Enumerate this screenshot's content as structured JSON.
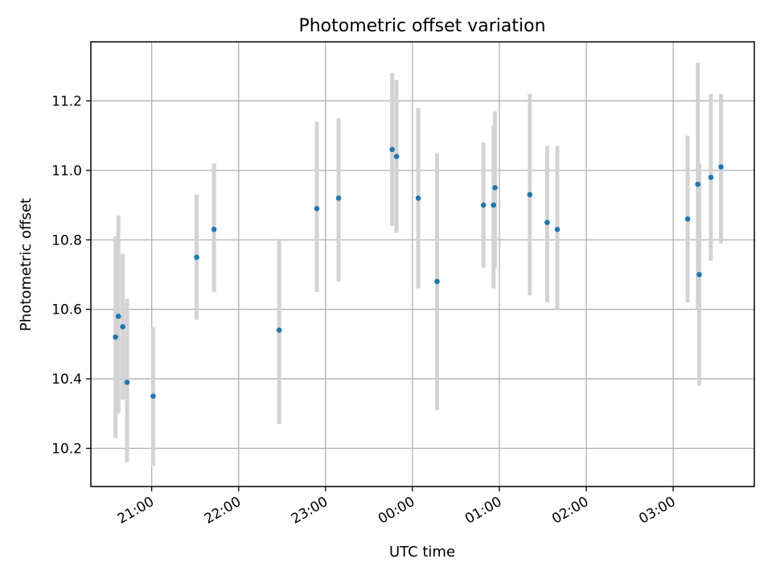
{
  "chart_data": {
    "type": "scatter",
    "title": "Photometric offset variation",
    "xlabel": "UTC time",
    "ylabel": "Photometric offset",
    "xlim": [
      "20:18",
      "03:56 (+1 day)"
    ],
    "ylim": [
      10.09,
      11.37
    ],
    "grid": true,
    "x_tick_labels": [
      "21:00",
      "22:00",
      "23:00",
      "00:00",
      "01:00",
      "02:00",
      "03:00"
    ],
    "y_tick_labels": [
      "10.2",
      "10.4",
      "10.6",
      "10.8",
      "11.0",
      "11.2"
    ],
    "y_ticks": [
      10.2,
      10.4,
      10.6,
      10.8,
      11.0,
      11.2
    ],
    "colors": {
      "marker": "#1f77b4",
      "errorbar": "#d3d3d3"
    },
    "points": [
      {
        "x": "20:35",
        "y": 10.52,
        "ymin": 10.23,
        "ymax": 10.81
      },
      {
        "x": "20:37",
        "y": 10.58,
        "ymin": 10.3,
        "ymax": 10.87
      },
      {
        "x": "20:40",
        "y": 10.55,
        "ymin": 10.34,
        "ymax": 10.76
      },
      {
        "x": "20:43",
        "y": 10.39,
        "ymin": 10.16,
        "ymax": 10.63
      },
      {
        "x": "21:01",
        "y": 10.35,
        "ymin": 10.15,
        "ymax": 10.55
      },
      {
        "x": "21:31",
        "y": 10.75,
        "ymin": 10.57,
        "ymax": 10.93
      },
      {
        "x": "21:43",
        "y": 10.83,
        "ymin": 10.65,
        "ymax": 11.02
      },
      {
        "x": "22:28",
        "y": 10.54,
        "ymin": 10.27,
        "ymax": 10.8
      },
      {
        "x": "22:54",
        "y": 10.89,
        "ymin": 10.65,
        "ymax": 11.14
      },
      {
        "x": "23:09",
        "y": 10.92,
        "ymin": 10.68,
        "ymax": 11.15
      },
      {
        "x": "23:46",
        "y": 11.06,
        "ymin": 10.84,
        "ymax": 11.28
      },
      {
        "x": "23:49",
        "y": 11.04,
        "ymin": 10.82,
        "ymax": 11.26
      },
      {
        "x": "00:04",
        "y": 10.92,
        "ymin": 10.66,
        "ymax": 11.18
      },
      {
        "x": "00:17",
        "y": 10.68,
        "ymin": 10.31,
        "ymax": 11.05
      },
      {
        "x": "00:49",
        "y": 10.9,
        "ymin": 10.72,
        "ymax": 11.08
      },
      {
        "x": "00:56",
        "y": 10.9,
        "ymin": 10.66,
        "ymax": 11.13
      },
      {
        "x": "00:57",
        "y": 10.95,
        "ymin": 10.72,
        "ymax": 11.17
      },
      {
        "x": "01:21",
        "y": 10.93,
        "ymin": 10.64,
        "ymax": 11.22
      },
      {
        "x": "01:33",
        "y": 10.85,
        "ymin": 10.62,
        "ymax": 11.07
      },
      {
        "x": "01:40",
        "y": 10.83,
        "ymin": 10.6,
        "ymax": 11.07
      },
      {
        "x": "03:10",
        "y": 10.86,
        "ymin": 10.62,
        "ymax": 11.1
      },
      {
        "x": "03:17",
        "y": 10.96,
        "ymin": 10.6,
        "ymax": 11.31
      },
      {
        "x": "03:18",
        "y": 10.7,
        "ymin": 10.38,
        "ymax": 11.02
      },
      {
        "x": "03:26",
        "y": 10.98,
        "ymin": 10.74,
        "ymax": 11.22
      },
      {
        "x": "03:33",
        "y": 11.01,
        "ymin": 10.79,
        "ymax": 11.22
      }
    ]
  }
}
